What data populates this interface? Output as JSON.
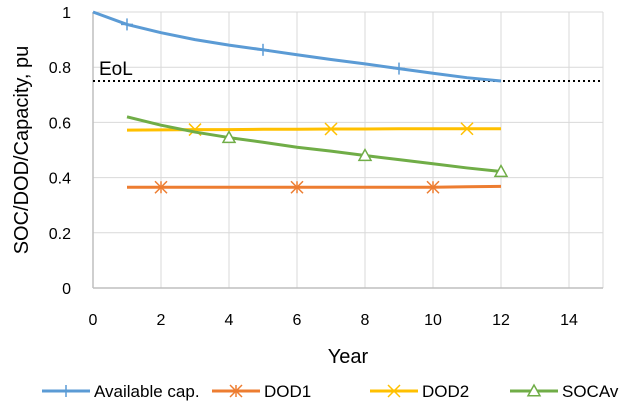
{
  "chart_data": {
    "type": "line",
    "xlabel": "Year",
    "ylabel": "SOC/DOD/Capacity, pu",
    "xlim": [
      0,
      15
    ],
    "ylim": [
      0,
      1
    ],
    "xticks": [
      "0",
      "2",
      "4",
      "6",
      "8",
      "10",
      "12",
      "14"
    ],
    "yticks": [
      "0",
      "0.2",
      "0.4",
      "0.6",
      "0.8",
      "1"
    ],
    "grid": "vertical and horizontal",
    "legend_position": "bottom",
    "series": [
      {
        "name": "Available cap.",
        "color": "#5b9bd5",
        "marker": "plus",
        "x": [
          0,
          1,
          2,
          3,
          4,
          5,
          6,
          7,
          8,
          9,
          10,
          11,
          12
        ],
        "y": [
          1.0,
          0.955,
          0.925,
          0.9,
          0.88,
          0.863,
          0.845,
          0.828,
          0.812,
          0.795,
          0.778,
          0.762,
          0.75
        ],
        "markers_at": [
          1,
          5,
          9
        ]
      },
      {
        "name": "DOD1",
        "color": "#ed7d31",
        "marker": "asterisk",
        "x": [
          1,
          2,
          3,
          4,
          5,
          6,
          7,
          8,
          9,
          10,
          11,
          12
        ],
        "y": [
          0.365,
          0.365,
          0.365,
          0.365,
          0.365,
          0.365,
          0.365,
          0.365,
          0.365,
          0.365,
          0.367,
          0.368
        ],
        "markers_at": [
          2,
          6,
          10
        ]
      },
      {
        "name": "DOD2",
        "color": "#ffc000",
        "marker": "x",
        "x": [
          1,
          2,
          3,
          4,
          5,
          6,
          7,
          8,
          9,
          10,
          11,
          12
        ],
        "y": [
          0.572,
          0.573,
          0.574,
          0.574,
          0.575,
          0.575,
          0.576,
          0.576,
          0.577,
          0.577,
          0.577,
          0.577
        ],
        "markers_at": [
          3,
          7,
          11
        ]
      },
      {
        "name": "SOCAv",
        "color": "#70ad47",
        "marker": "triangle",
        "x": [
          1,
          2,
          3,
          4,
          5,
          6,
          7,
          8,
          9,
          10,
          11,
          12
        ],
        "y": [
          0.62,
          0.59,
          0.565,
          0.545,
          0.528,
          0.51,
          0.496,
          0.48,
          0.465,
          0.45,
          0.435,
          0.422
        ],
        "markers_at": [
          4,
          8,
          12
        ]
      }
    ],
    "annotations": [
      {
        "text": "EoL",
        "y": 0.75,
        "style": "dotted horizontal line"
      }
    ]
  }
}
